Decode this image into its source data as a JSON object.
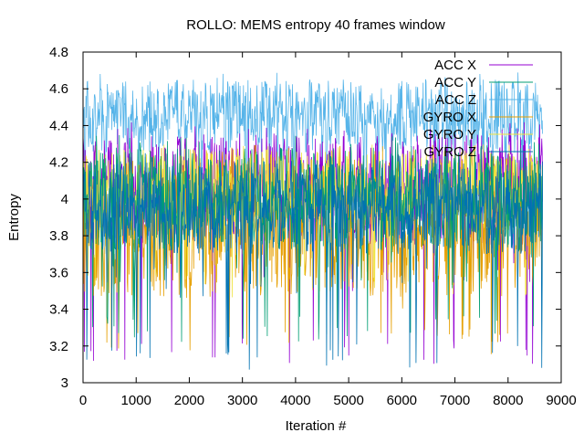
{
  "chart_data": {
    "type": "line",
    "title": "ROLLO: MEMS entropy 40 frames window",
    "xlabel": "Iteration #",
    "ylabel": "Entropy",
    "xlim": [
      0,
      9000
    ],
    "ylim": [
      3,
      4.8
    ],
    "xticks": [
      0,
      1000,
      2000,
      3000,
      4000,
      5000,
      6000,
      7000,
      8000,
      9000
    ],
    "yticks": [
      3,
      3.2,
      3.4,
      3.6,
      3.8,
      4,
      4.2,
      4.4,
      4.6,
      4.8
    ],
    "xtick_labels": [
      "0",
      "1000",
      "2000",
      "3000",
      "4000",
      "5000",
      "6000",
      "7000",
      "8000",
      "9000"
    ],
    "ytick_labels": [
      "3",
      "3.2",
      "3.4",
      "3.6",
      "3.8",
      "4",
      "4.2",
      "4.4",
      "4.6",
      "4.8"
    ],
    "grid": false,
    "legend": "top-right",
    "x_end": 8650,
    "series": [
      {
        "name": "ACC X",
        "color": "#9400d3",
        "base": 4.05,
        "spread": 0.3,
        "min": 3.09,
        "max": 4.42
      },
      {
        "name": "ACC Y",
        "color": "#009e73",
        "base": 4.0,
        "spread": 0.28,
        "min": 3.22,
        "max": 4.35
      },
      {
        "name": "ACC Z",
        "color": "#56b4e9",
        "base": 4.45,
        "spread": 0.2,
        "min": 3.7,
        "max": 4.7
      },
      {
        "name": "GYRO X",
        "color": "#e69f00",
        "base": 3.85,
        "spread": 0.38,
        "min": 3.15,
        "max": 4.3
      },
      {
        "name": "GYRO Y",
        "color": "#f0e442",
        "base": 4.05,
        "spread": 0.22,
        "min": 3.45,
        "max": 4.3
      },
      {
        "name": "GYRO Z",
        "color": "#0072b2",
        "base": 3.95,
        "spread": 0.25,
        "min": 3.06,
        "max": 4.25
      }
    ]
  }
}
